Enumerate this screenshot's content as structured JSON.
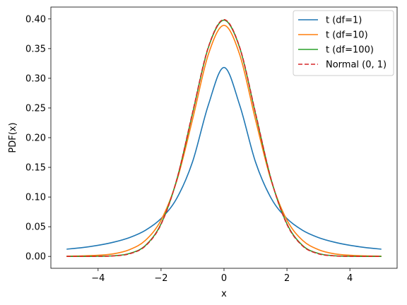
{
  "chart_data": {
    "type": "line",
    "title": "",
    "xlabel": "x",
    "ylabel": "PDF(x)",
    "xlim": [
      -5.5,
      5.5
    ],
    "ylim": [
      -0.02,
      0.42
    ],
    "x_ticks": [
      -4,
      -2,
      0,
      2,
      4
    ],
    "x_tick_labels": [
      "−4",
      "−2",
      "0",
      "2",
      "4"
    ],
    "y_ticks": [
      0.0,
      0.05,
      0.1,
      0.15,
      0.2,
      0.25,
      0.3,
      0.35,
      0.4
    ],
    "y_tick_labels": [
      "0.00",
      "0.05",
      "0.10",
      "0.15",
      "0.20",
      "0.25",
      "0.30",
      "0.35",
      "0.40"
    ],
    "grid": false,
    "legend_position": "top-right",
    "x": [
      -5,
      -4.5,
      -4,
      -3.5,
      -3,
      -2.5,
      -2,
      -1.5,
      -1,
      -0.5,
      0,
      0.5,
      1,
      1.5,
      2,
      2.5,
      3,
      3.5,
      4,
      4.5,
      5
    ],
    "series": [
      {
        "name": "t (df=1)",
        "color": "#1f77b4",
        "dash": "solid",
        "values": [
          0.0122,
          0.0149,
          0.0187,
          0.0241,
          0.0318,
          0.0439,
          0.0637,
          0.0979,
          0.1592,
          0.2546,
          0.3183,
          0.2546,
          0.1592,
          0.0979,
          0.0637,
          0.0439,
          0.0318,
          0.0241,
          0.0187,
          0.0149,
          0.0122
        ]
      },
      {
        "name": "t (df=10)",
        "color": "#ff7f0e",
        "dash": "solid",
        "values": [
          0.0004,
          0.0009,
          0.002,
          0.0045,
          0.0114,
          0.0269,
          0.0611,
          0.1274,
          0.2304,
          0.3397,
          0.3891,
          0.3397,
          0.2304,
          0.1274,
          0.0611,
          0.0269,
          0.0114,
          0.0045,
          0.002,
          0.0009,
          0.0004
        ]
      },
      {
        "name": "t (df=100)",
        "color": "#2ca02c",
        "dash": "solid",
        "values": [
          0.0,
          0.0,
          0.0002,
          0.0011,
          0.005,
          0.0182,
          0.0549,
          0.1292,
          0.2407,
          0.3513,
          0.3979,
          0.3513,
          0.2407,
          0.1292,
          0.0549,
          0.0182,
          0.005,
          0.0011,
          0.0002,
          0.0,
          0.0
        ]
      },
      {
        "name": "Normal (0, 1)",
        "color": "#d62728",
        "dash": "dashed",
        "values": [
          0.0,
          0.0,
          0.0001,
          0.0009,
          0.0044,
          0.0175,
          0.054,
          0.1295,
          0.242,
          0.3521,
          0.3989,
          0.3521,
          0.242,
          0.1295,
          0.054,
          0.0175,
          0.0044,
          0.0009,
          0.0001,
          0.0,
          0.0
        ]
      }
    ]
  }
}
